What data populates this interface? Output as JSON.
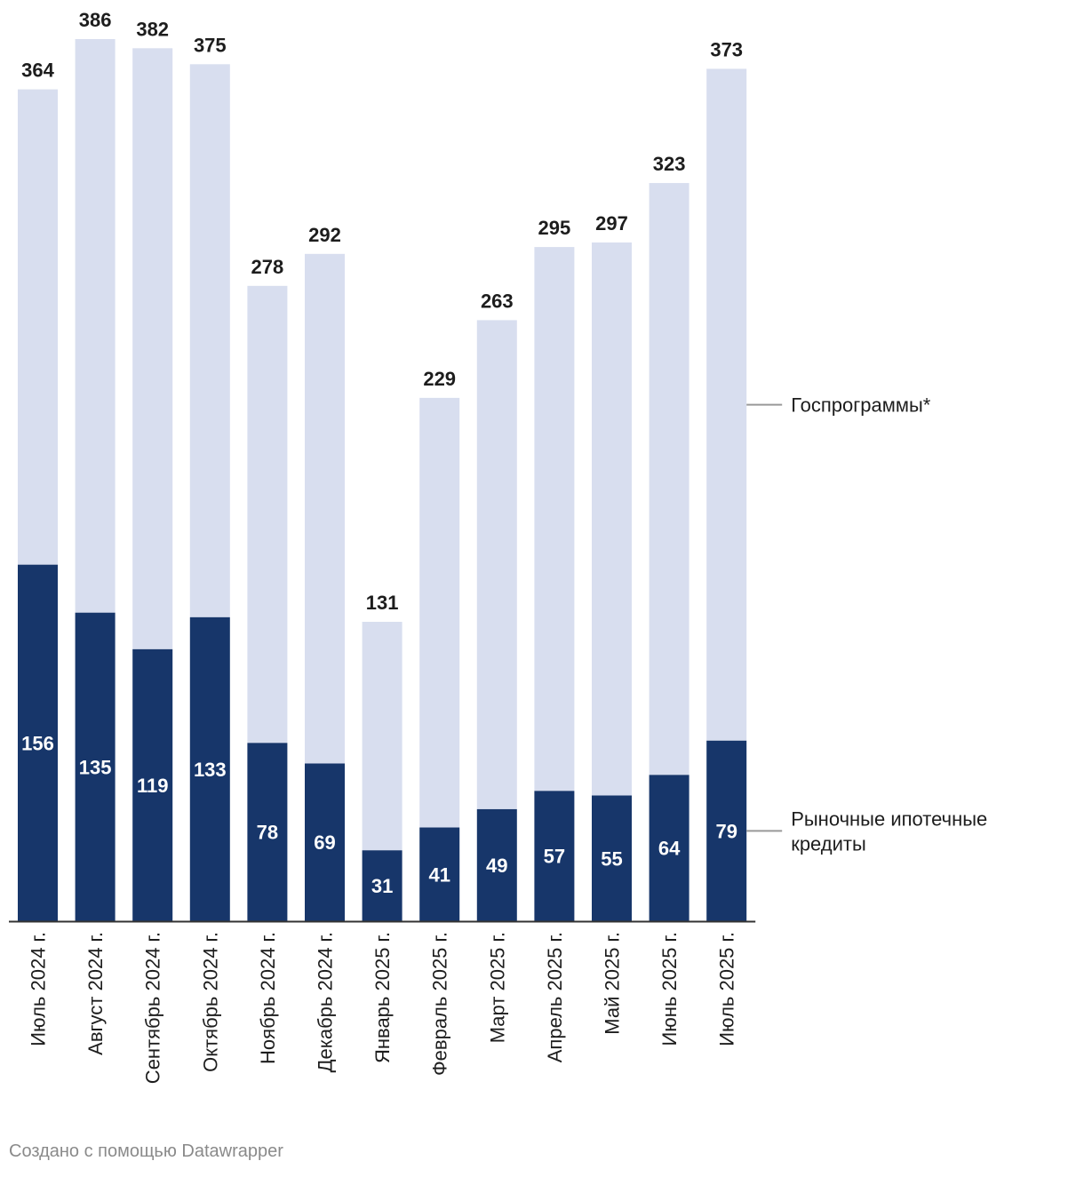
{
  "chart_data": {
    "type": "bar",
    "stacked": true,
    "categories": [
      "Июль 2024 г.",
      "Август 2024 г.",
      "Сентябрь 2024 г.",
      "Октябрь 2024 г.",
      "Ноябрь 2024 г.",
      "Декабрь 2024 г.",
      "Январь 2025 г.",
      "Февраль 2025 г.",
      "Март 2025 г.",
      "Апрель 2025 г.",
      "Май 2025 г.",
      "Июнь 2025 г.",
      "Июль 2025 г."
    ],
    "totals": [
      364,
      386,
      382,
      375,
      278,
      292,
      131,
      229,
      263,
      295,
      297,
      323,
      373
    ],
    "series": [
      {
        "name": "Рыночные ипотечные кредиты",
        "name_lines": [
          "Рыночные ипотечные",
          "кредиты"
        ],
        "values": [
          156,
          135,
          119,
          133,
          78,
          69,
          31,
          41,
          49,
          57,
          55,
          64,
          79
        ],
        "color": "#17366a"
      },
      {
        "name": "Госпрограммы*",
        "name_lines": [
          "Госпрограммы*"
        ],
        "values": [
          208,
          251,
          263,
          242,
          200,
          223,
          100,
          188,
          214,
          238,
          242,
          259,
          294
        ],
        "color": "#d8deef"
      }
    ],
    "ylim": [
      0,
      386
    ],
    "axis_color": "#333333",
    "legend_line_color": "#999999",
    "legend_position": "right"
  },
  "footer": {
    "credit": "Создано с помощью Datawrapper"
  }
}
